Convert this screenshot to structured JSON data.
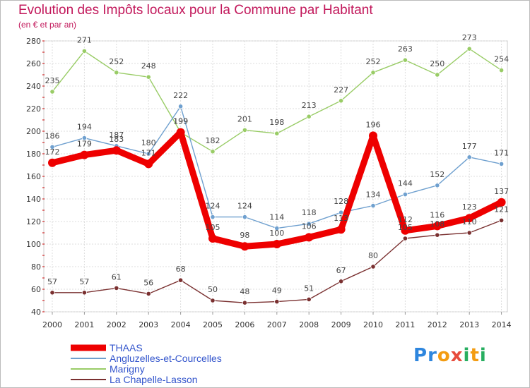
{
  "header": {
    "title": "Evolution des Impôts locaux pour la Commune par Habitant",
    "subtitle": "(en € et par an)"
  },
  "logo": {
    "text": "Proxiti"
  },
  "chart_data": {
    "type": "line",
    "title": "Evolution des Impôts locaux pour la Commune par Habitant",
    "subtitle": "(en € et par an)",
    "xlabel": "",
    "ylabel": "",
    "x": [
      "2000",
      "2001",
      "2002",
      "2003",
      "2004",
      "2005",
      "2006",
      "2007",
      "2008",
      "2009",
      "2010",
      "2011",
      "2012",
      "2013",
      "2014"
    ],
    "ylim": [
      40,
      280
    ],
    "yticks": [
      40,
      60,
      80,
      100,
      120,
      140,
      160,
      180,
      200,
      220,
      240,
      260,
      280
    ],
    "grid": true,
    "legend": "bottom-left",
    "series": [
      {
        "name": "THAAS",
        "color": "#ee0000",
        "values": [
          172,
          179,
          183,
          171,
          199,
          105,
          98,
          100,
          106,
          113,
          196,
          112,
          116,
          123,
          137
        ]
      },
      {
        "name": "Angluzelles-et-Courcelles",
        "color": "#6fa0cf",
        "values": [
          186,
          194,
          187,
          180,
          222,
          124,
          124,
          114,
          118,
          128,
          134,
          144,
          152,
          177,
          171
        ]
      },
      {
        "name": "Marigny",
        "color": "#99cc66",
        "values": [
          235,
          271,
          252,
          248,
          199,
          182,
          201,
          198,
          213,
          227,
          252,
          263,
          250,
          273,
          254
        ]
      },
      {
        "name": "La Chapelle-Lasson",
        "color": "#7a3030",
        "values": [
          57,
          57,
          61,
          56,
          68,
          50,
          48,
          49,
          51,
          67,
          80,
          105,
          108,
          110,
          121
        ]
      }
    ]
  }
}
